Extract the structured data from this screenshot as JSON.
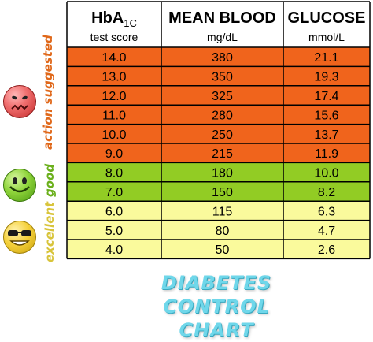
{
  "header": {
    "hba_label": "HbA",
    "hba_sub": "1C",
    "col1_sub": "test score",
    "col2": "MEAN BLOOD",
    "col2_sub": "mg/dL",
    "col3": "GLUCOSE",
    "col3_sub": "mmol/L"
  },
  "labels": {
    "action": "action suggested",
    "good": "good",
    "excellent": "excellent"
  },
  "footer": {
    "line1": "DIABETES CONTROL",
    "line2": "CHART"
  },
  "colors": {
    "action": "#f0641c",
    "good": "#92cc24",
    "excellent": "#fafa9c",
    "border": "#000000"
  },
  "chart_data": {
    "type": "table",
    "columns": [
      "HbA1C test score",
      "MEAN BLOOD mg/dL",
      "GLUCOSE mmol/L"
    ],
    "rows": [
      {
        "hba1c": "14.0",
        "mgdl": "380",
        "mmol": "21.1",
        "category": "action"
      },
      {
        "hba1c": "13.0",
        "mgdl": "350",
        "mmol": "19.3",
        "category": "action"
      },
      {
        "hba1c": "12.0",
        "mgdl": "325",
        "mmol": "17.4",
        "category": "action"
      },
      {
        "hba1c": "11.0",
        "mgdl": "280",
        "mmol": "15.6",
        "category": "action"
      },
      {
        "hba1c": "10.0",
        "mgdl": "250",
        "mmol": "13.7",
        "category": "action"
      },
      {
        "hba1c": "9.0",
        "mgdl": "215",
        "mmol": "11.9",
        "category": "action"
      },
      {
        "hba1c": "8.0",
        "mgdl": "180",
        "mmol": "10.0",
        "category": "good"
      },
      {
        "hba1c": "7.0",
        "mgdl": "150",
        "mmol": "8.2",
        "category": "good"
      },
      {
        "hba1c": "6.0",
        "mgdl": "115",
        "mmol": "6.3",
        "category": "excellent"
      },
      {
        "hba1c": "5.0",
        "mgdl": "80",
        "mmol": "4.7",
        "category": "excellent"
      },
      {
        "hba1c": "4.0",
        "mgdl": "50",
        "mmol": "2.6",
        "category": "excellent"
      }
    ]
  }
}
